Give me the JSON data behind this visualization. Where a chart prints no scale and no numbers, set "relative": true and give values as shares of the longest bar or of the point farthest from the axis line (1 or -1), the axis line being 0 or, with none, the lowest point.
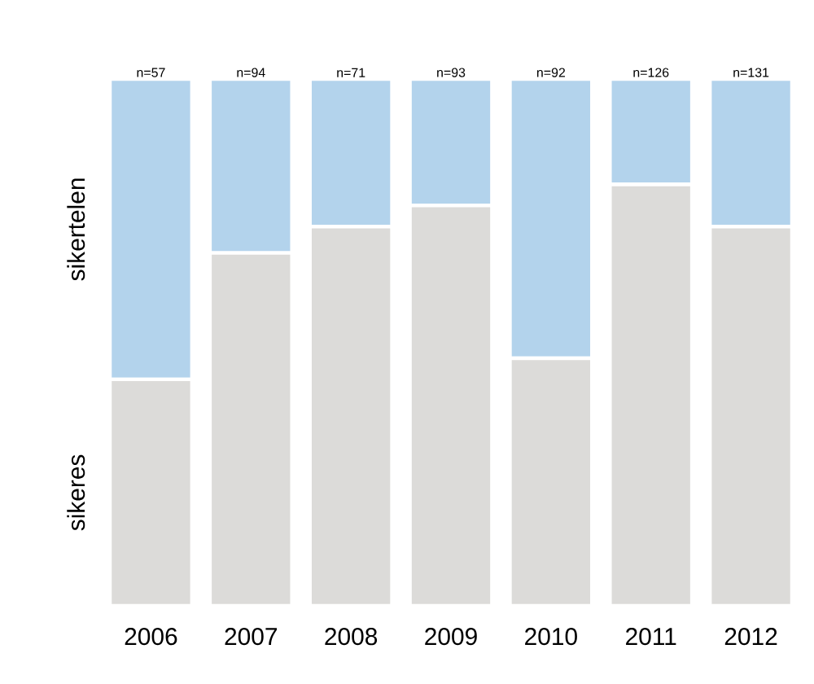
{
  "chart_data": {
    "type": "bar",
    "stacked": true,
    "relative": true,
    "legend": false,
    "categories": [
      "2006",
      "2007",
      "2008",
      "2009",
      "2010",
      "2011",
      "2012"
    ],
    "series": [
      {
        "name": "sikeres",
        "color": "#dcdbd9",
        "values": [
          0.43,
          0.67,
          0.72,
          0.76,
          0.47,
          0.8,
          0.72
        ]
      },
      {
        "name": "sikertelen",
        "color": "#b3d3ec",
        "values": [
          0.57,
          0.33,
          0.28,
          0.24,
          0.53,
          0.2,
          0.28
        ]
      }
    ],
    "annotations": [
      {
        "text": "n=57",
        "x": "2006",
        "y": 1
      },
      {
        "text": "n=94",
        "x": "2007",
        "y": 1
      },
      {
        "text": "n=71",
        "x": "2008",
        "y": 1
      },
      {
        "text": "n=93",
        "x": "2009",
        "y": 1
      },
      {
        "text": "n=92",
        "x": "2010",
        "y": 1
      },
      {
        "text": "n=126",
        "x": "2011",
        "y": 1
      },
      {
        "text": "n=131",
        "x": "2012",
        "y": 1
      }
    ]
  }
}
